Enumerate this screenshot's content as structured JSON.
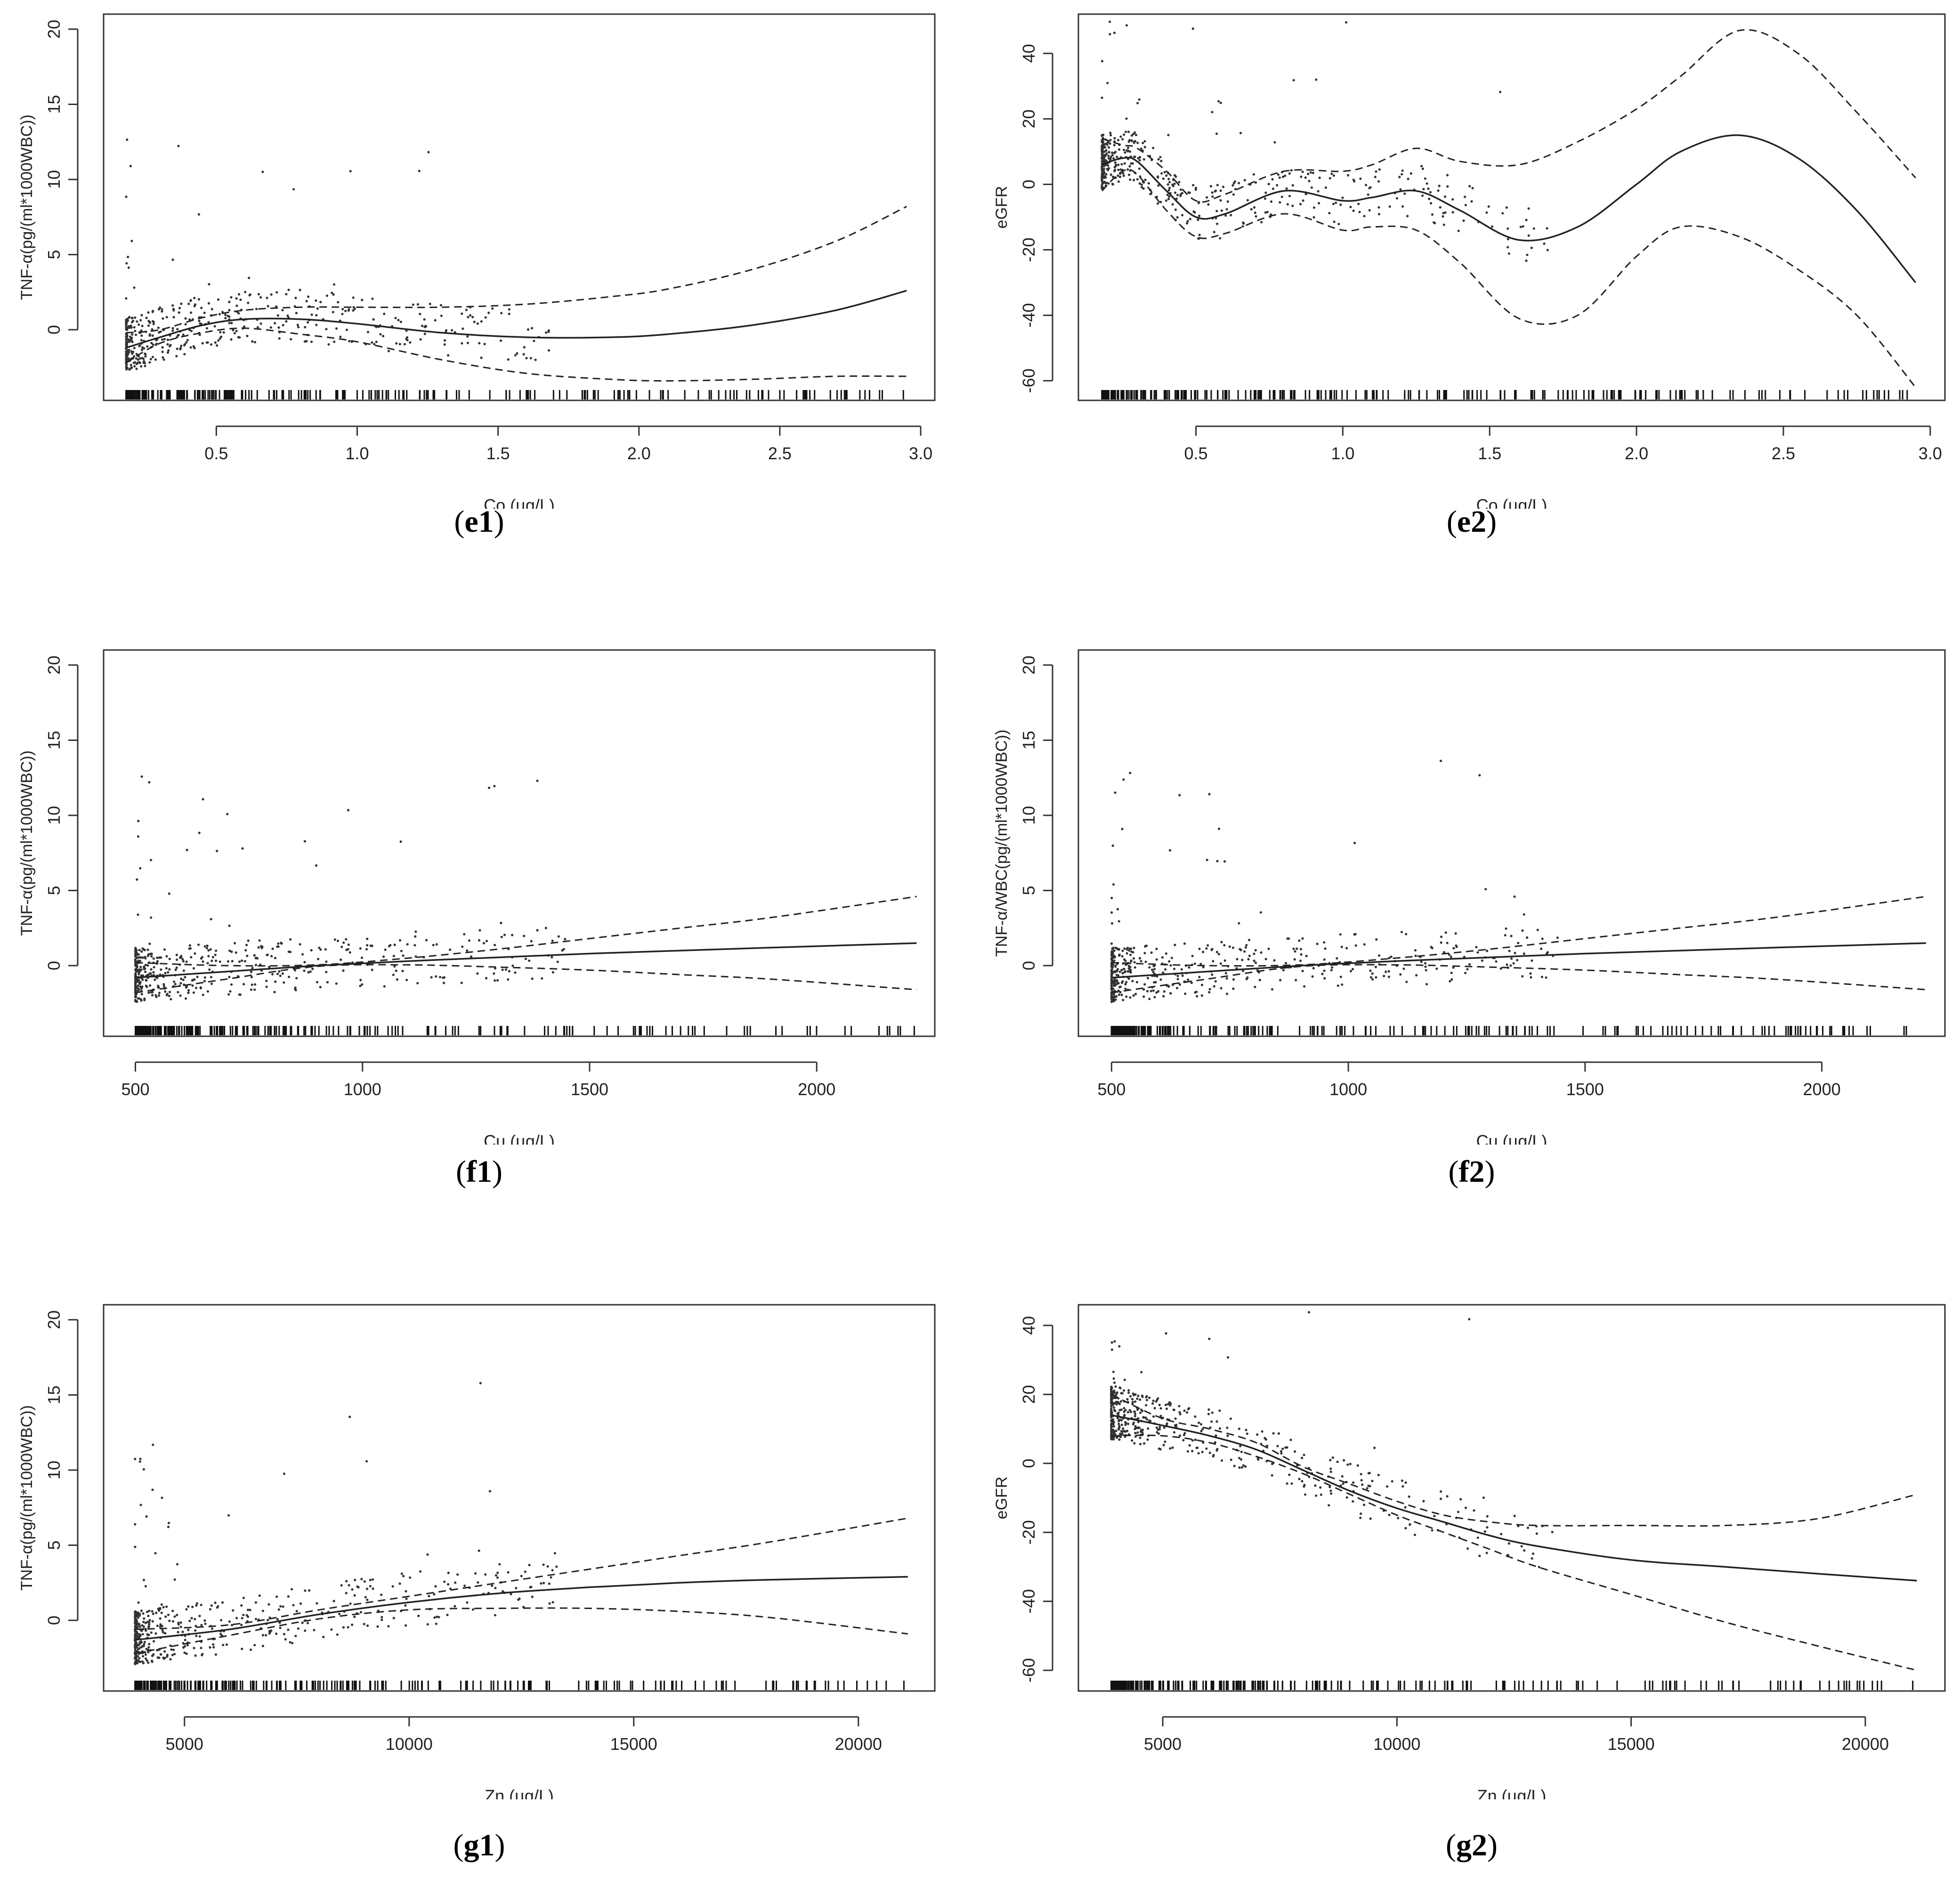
{
  "chart_data": [
    {
      "id": "e1",
      "type": "line",
      "caption": "e1",
      "xlabel": "Co (µg/L)",
      "ylabel": "TNF-α(pg/(ml*1000WBC))",
      "xlim": [
        0.1,
        3.05
      ],
      "ylim": [
        -4.7,
        21
      ],
      "xticks": [
        0.5,
        1.0,
        1.5,
        2.0,
        2.5,
        3.0
      ],
      "xtick_labels": [
        "0.5",
        "1.0",
        "1.5",
        "2.0",
        "2.5",
        "3.0"
      ],
      "yticks": [
        0,
        5,
        10,
        15,
        20
      ],
      "ytick_labels": [
        "0",
        "5",
        "10",
        "15",
        "20"
      ],
      "grid": false,
      "series": [
        {
          "style": "solid",
          "x": [
            0.18,
            0.3,
            0.45,
            0.6,
            0.8,
            1.0,
            1.3,
            1.6,
            1.9,
            2.1,
            2.4,
            2.7,
            2.95
          ],
          "y": [
            -1.2,
            -0.5,
            0.3,
            0.7,
            0.7,
            0.4,
            -0.2,
            -0.5,
            -0.5,
            -0.3,
            0.3,
            1.3,
            2.6
          ]
        },
        {
          "style": "dashed",
          "x": [
            0.18,
            0.3,
            0.45,
            0.6,
            0.8,
            1.0,
            1.3,
            1.6,
            1.9,
            2.1,
            2.4,
            2.7,
            2.95
          ],
          "y": [
            -0.2,
            0.0,
            0.8,
            1.3,
            1.5,
            1.5,
            1.5,
            1.7,
            2.2,
            2.7,
            4.0,
            5.9,
            8.2
          ]
        },
        {
          "style": "dashed",
          "x": [
            0.18,
            0.3,
            0.45,
            0.6,
            0.8,
            1.0,
            1.3,
            1.6,
            1.9,
            2.1,
            2.4,
            2.7,
            2.95
          ],
          "y": [
            -2.2,
            -0.9,
            -0.2,
            0.1,
            -0.3,
            -0.8,
            -2.0,
            -2.9,
            -3.3,
            -3.4,
            -3.3,
            -3.1,
            -3.1
          ]
        }
      ]
    },
    {
      "id": "e2",
      "type": "line",
      "caption": "e2",
      "xlabel": "Co (µg/L)",
      "ylabel": "eGFR",
      "xlim": [
        0.1,
        3.05
      ],
      "ylim": [
        -66,
        52
      ],
      "xticks": [
        0.5,
        1.0,
        1.5,
        2.0,
        2.5,
        3.0
      ],
      "xtick_labels": [
        "0.5",
        "1.0",
        "1.5",
        "2.0",
        "2.5",
        "3.0"
      ],
      "yticks": [
        -60,
        -40,
        -20,
        0,
        20,
        40
      ],
      "ytick_labels": [
        "-60",
        "-40",
        "-20",
        "0",
        "20",
        "40"
      ],
      "grid": false,
      "series": [
        {
          "style": "solid",
          "x": [
            0.18,
            0.25,
            0.3,
            0.4,
            0.5,
            0.6,
            0.8,
            1.0,
            1.1,
            1.25,
            1.4,
            1.6,
            1.8,
            2.0,
            2.15,
            2.35,
            2.55,
            2.75,
            2.95
          ],
          "y": [
            6,
            8,
            7,
            -2,
            -10,
            -9,
            -2,
            -5,
            -4,
            -2,
            -8,
            -17,
            -13,
            0,
            10,
            15,
            8,
            -8,
            -30
          ]
        },
        {
          "style": "dashed",
          "x": [
            0.18,
            0.25,
            0.3,
            0.4,
            0.5,
            0.6,
            0.8,
            1.0,
            1.1,
            1.25,
            1.4,
            1.6,
            1.8,
            2.0,
            2.15,
            2.35,
            2.55,
            2.75,
            2.95
          ],
          "y": [
            14,
            12,
            11,
            4,
            -5,
            -3,
            4,
            4,
            6,
            11,
            7,
            6,
            13,
            23,
            33,
            47,
            40,
            22,
            2
          ]
        },
        {
          "style": "dashed",
          "x": [
            0.18,
            0.25,
            0.3,
            0.4,
            0.5,
            0.6,
            0.8,
            1.0,
            1.1,
            1.25,
            1.4,
            1.6,
            1.8,
            2.0,
            2.15,
            2.35,
            2.55,
            2.75,
            2.95
          ],
          "y": [
            -2,
            4,
            3,
            -8,
            -16,
            -15,
            -9,
            -14,
            -13,
            -14,
            -24,
            -41,
            -40,
            -22,
            -13,
            -16,
            -26,
            -40,
            -62
          ]
        }
      ]
    },
    {
      "id": "f1",
      "type": "line",
      "caption": "f1",
      "xlabel": "Cu (µg/L)",
      "ylabel": "TNF-α(pg/(ml*1000WBC))",
      "xlim": [
        430,
        2260
      ],
      "ylim": [
        -4.7,
        21
      ],
      "xticks": [
        500,
        1000,
        1500,
        2000
      ],
      "xtick_labels": [
        "500",
        "1000",
        "1500",
        "2000"
      ],
      "yticks": [
        0,
        5,
        10,
        15,
        20
      ],
      "ytick_labels": [
        "0",
        "5",
        "10",
        "15",
        "20"
      ],
      "grid": false,
      "series": [
        {
          "style": "solid",
          "x": [
            500,
            700,
            900,
            1100,
            1300,
            1500,
            1700,
            1900,
            2220
          ],
          "y": [
            -0.8,
            -0.4,
            0.0,
            0.3,
            0.55,
            0.8,
            1.0,
            1.2,
            1.5
          ]
        },
        {
          "style": "dashed",
          "x": [
            500,
            700,
            900,
            1100,
            1300,
            1500,
            1700,
            1900,
            2220
          ],
          "y": [
            0.2,
            0.0,
            0.05,
            0.5,
            1.1,
            1.8,
            2.5,
            3.2,
            4.6
          ]
        },
        {
          "style": "dashed",
          "x": [
            500,
            700,
            900,
            1100,
            1300,
            1500,
            1700,
            1900,
            2220
          ],
          "y": [
            -1.8,
            -0.9,
            -0.05,
            0.05,
            -0.1,
            -0.3,
            -0.6,
            -0.9,
            -1.6
          ]
        }
      ]
    },
    {
      "id": "f2",
      "type": "line",
      "caption": "f2",
      "xlabel": "Cu (µg/L)",
      "ylabel": "TNF-α/WBC(pg/(ml*1000WBC))",
      "xlim": [
        430,
        2260
      ],
      "ylim": [
        -4.7,
        21
      ],
      "xticks": [
        500,
        1000,
        1500,
        2000
      ],
      "xtick_labels": [
        "500",
        "1000",
        "1500",
        "2000"
      ],
      "yticks": [
        0,
        5,
        10,
        15,
        20
      ],
      "ytick_labels": [
        "0",
        "5",
        "10",
        "15",
        "20"
      ],
      "grid": false,
      "series": [
        {
          "style": "solid",
          "x": [
            500,
            700,
            900,
            1100,
            1300,
            1500,
            1700,
            1900,
            2220
          ],
          "y": [
            -0.8,
            -0.4,
            0.0,
            0.3,
            0.55,
            0.8,
            1.0,
            1.2,
            1.5
          ]
        },
        {
          "style": "dashed",
          "x": [
            500,
            700,
            900,
            1100,
            1300,
            1500,
            1700,
            1900,
            2220
          ],
          "y": [
            0.2,
            0.0,
            0.05,
            0.5,
            1.1,
            1.8,
            2.5,
            3.2,
            4.6
          ]
        },
        {
          "style": "dashed",
          "x": [
            500,
            700,
            900,
            1100,
            1300,
            1500,
            1700,
            1900,
            2220
          ],
          "y": [
            -1.8,
            -0.9,
            -0.05,
            0.05,
            -0.1,
            -0.3,
            -0.6,
            -0.9,
            -1.6
          ]
        }
      ]
    },
    {
      "id": "g1",
      "type": "line",
      "caption": "g1",
      "xlabel": "Zn (µg/L)",
      "ylabel": "TNF-α(pg/(ml*1000WBC))",
      "xlim": [
        3200,
        21700
      ],
      "ylim": [
        -4.7,
        21
      ],
      "xticks": [
        5000,
        10000,
        15000,
        20000
      ],
      "xtick_labels": [
        "5000",
        "10000",
        "15000",
        "20000"
      ],
      "yticks": [
        0,
        5,
        10,
        15,
        20
      ],
      "ytick_labels": [
        "0",
        "5",
        "10",
        "15",
        "20"
      ],
      "grid": false,
      "series": [
        {
          "style": "solid",
          "x": [
            3900,
            6000,
            8000,
            10000,
            12000,
            14000,
            16000,
            18000,
            21100
          ],
          "y": [
            -1.3,
            -0.6,
            0.4,
            1.2,
            1.8,
            2.2,
            2.5,
            2.7,
            2.9
          ]
        },
        {
          "style": "dashed",
          "x": [
            3900,
            6000,
            8000,
            10000,
            12000,
            14000,
            16000,
            18000,
            21100
          ],
          "y": [
            -0.6,
            -0.3,
            0.7,
            1.6,
            2.5,
            3.4,
            4.3,
            5.2,
            6.8
          ]
        },
        {
          "style": "dashed",
          "x": [
            3900,
            6000,
            8000,
            10000,
            12000,
            14000,
            16000,
            18000,
            21100
          ],
          "y": [
            -2.2,
            -1.0,
            0.1,
            0.7,
            0.8,
            0.8,
            0.6,
            0.2,
            -0.9
          ]
        }
      ]
    },
    {
      "id": "g2",
      "type": "line",
      "caption": "g2",
      "xlabel": "Zn (µg/L)",
      "ylabel": "eGFR",
      "xlim": [
        3200,
        21700
      ],
      "ylim": [
        -66,
        46
      ],
      "xticks": [
        5000,
        10000,
        15000,
        20000
      ],
      "xtick_labels": [
        "5000",
        "10000",
        "15000",
        "20000"
      ],
      "yticks": [
        -60,
        -40,
        -20,
        0,
        20,
        40
      ],
      "ytick_labels": [
        "-60",
        "-40",
        "-20",
        "0",
        "20",
        "40"
      ],
      "grid": false,
      "series": [
        {
          "style": "solid",
          "x": [
            3900,
            5000,
            6000,
            7000,
            8000,
            9000,
            10000,
            11000,
            12000,
            13000,
            15000,
            17000,
            19000,
            21100
          ],
          "y": [
            14,
            11,
            8,
            4,
            -2,
            -8,
            -13,
            -17,
            -21,
            -24,
            -28,
            -30,
            -32,
            -34
          ]
        },
        {
          "style": "dashed",
          "x": [
            3900,
            5000,
            6000,
            7000,
            8000,
            9000,
            10000,
            11000,
            12000,
            13000,
            15000,
            17000,
            19000,
            21100
          ],
          "y": [
            20,
            13,
            10,
            6,
            -1,
            -6,
            -11,
            -15,
            -17,
            -18,
            -18,
            -18,
            -16,
            -9
          ]
        },
        {
          "style": "dashed",
          "x": [
            3900,
            5000,
            6000,
            7000,
            8000,
            9000,
            10000,
            11000,
            12000,
            13000,
            15000,
            17000,
            19000,
            21100
          ],
          "y": [
            8,
            8,
            6,
            2,
            -3,
            -9,
            -15,
            -20,
            -25,
            -30,
            -38,
            -46,
            -53,
            -60
          ]
        }
      ]
    }
  ]
}
